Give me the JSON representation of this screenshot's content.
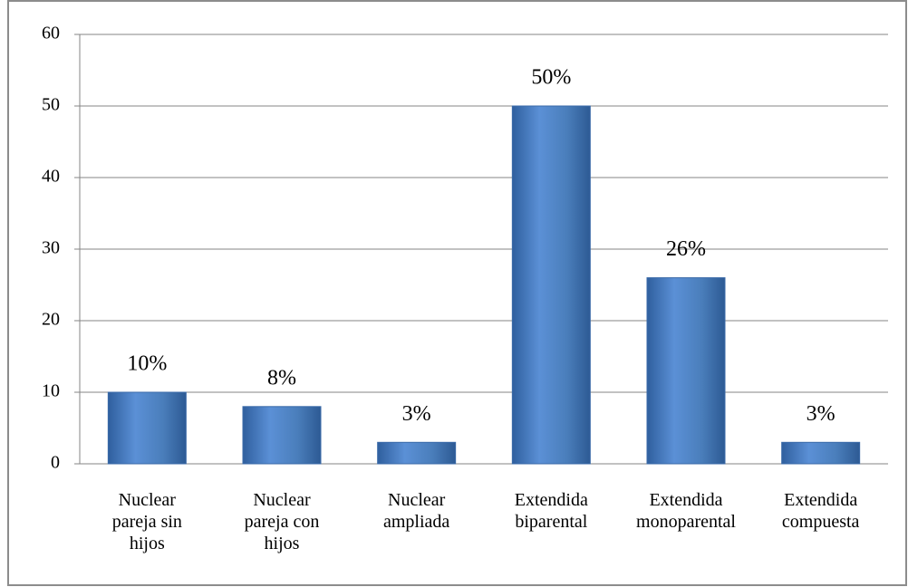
{
  "chart_data": {
    "type": "bar",
    "categories": [
      "Nuclear\npareja sin\nhijos",
      "Nuclear\npareja con\nhijos",
      "Nuclear\nampliada",
      "Extendida\nbiparental",
      "Extendida\nmonoparental",
      "Extendida\ncompuesta"
    ],
    "values": [
      10,
      8,
      3,
      50,
      26,
      3
    ],
    "value_labels": [
      "10%",
      "8%",
      "3%",
      "50%",
      "26%",
      "3%"
    ],
    "color": "#4a7ebb",
    "ylim": [
      0,
      60
    ],
    "yticks": [
      0,
      10,
      20,
      30,
      40,
      50,
      60
    ],
    "grid": true
  }
}
